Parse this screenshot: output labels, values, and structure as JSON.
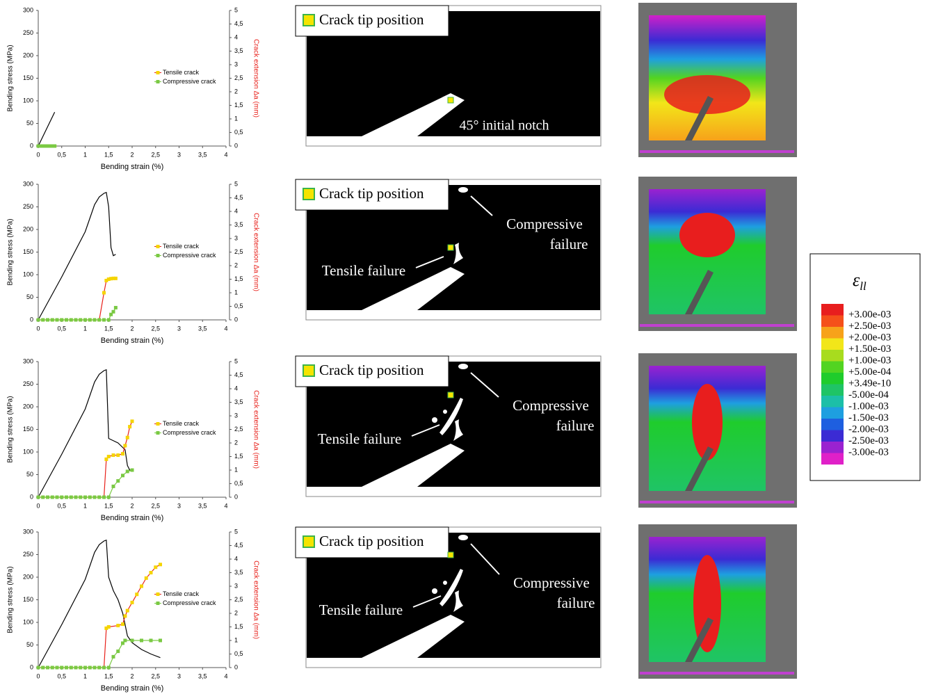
{
  "chart_data": [
    {
      "type": "line",
      "xlabel": "Bending strain (%)",
      "ylabel": "Bending stress (MPa)",
      "y2label": "Crack extension Δa (mm)",
      "legend": "center right",
      "xlim": [
        0,
        4
      ],
      "xticks": [
        0,
        {
          "value": 0.5,
          "label": "0,5"
        },
        1,
        {
          "value": 1.5,
          "label": "1,5"
        },
        2,
        {
          "value": 2.5,
          "label": "2,5"
        },
        3,
        {
          "value": 3.5,
          "label": "3,5"
        },
        4
      ],
      "ylim": [
        0,
        300
      ],
      "yticks": [
        0,
        50,
        100,
        150,
        200,
        250,
        300
      ],
      "y2lim": [
        0,
        5
      ],
      "y2ticks": [
        0,
        {
          "value": 0.5,
          "label": "0,5"
        },
        1,
        {
          "value": 1.5,
          "label": "1,5"
        },
        2,
        {
          "value": 2.5,
          "label": "2,5"
        },
        3,
        {
          "value": 3.5,
          "label": "3,5"
        },
        4,
        {
          "value": 4.5,
          "label": "4,5"
        },
        5
      ],
      "series": [
        {
          "color": "#000000",
          "axis": "y",
          "x": [
            0,
            0.35
          ],
          "values": [
            0,
            75
          ]
        },
        {
          "name": "Tensile crack",
          "color": "#f5d400",
          "line_color": "#e8201a",
          "axis": "y2",
          "x": [
            0,
            0.05,
            0.1,
            0.15,
            0.2,
            0.25,
            0.3,
            0.35
          ],
          "values": [
            0,
            0,
            0,
            0,
            0,
            0,
            0,
            0
          ]
        },
        {
          "name": "Compressive crack",
          "color": "#7ac943",
          "line_color": "#7ac943",
          "axis": "y2",
          "x": [
            0,
            0.05,
            0.1,
            0.15,
            0.2,
            0.25,
            0.3,
            0.35
          ],
          "values": [
            0,
            0,
            0,
            0,
            0,
            0,
            0,
            0
          ]
        }
      ]
    },
    {
      "type": "line",
      "xlabel": "Bending strain (%)",
      "ylabel": "Bending stress (MPa)",
      "y2label": "Crack extension Δa (mm)",
      "legend": "center right",
      "xlim": [
        0,
        4
      ],
      "xticks": [
        0,
        {
          "value": 0.5,
          "label": "0,5"
        },
        1,
        {
          "value": 1.5,
          "label": "1,5"
        },
        2,
        {
          "value": 2.5,
          "label": "2,5"
        },
        3,
        {
          "value": 3.5,
          "label": "3,5"
        },
        4
      ],
      "ylim": [
        0,
        300
      ],
      "yticks": [
        0,
        50,
        100,
        150,
        200,
        250,
        300
      ],
      "y2lim": [
        0,
        5
      ],
      "y2ticks": [
        0,
        {
          "value": 0.5,
          "label": "0,5"
        },
        1,
        {
          "value": 1.5,
          "label": "1,5"
        },
        2,
        {
          "value": 2.5,
          "label": "2,5"
        },
        3,
        {
          "value": 3.5,
          "label": "3,5"
        },
        4,
        {
          "value": 4.5,
          "label": "4,5"
        },
        5
      ],
      "series": [
        {
          "color": "#000000",
          "axis": "y",
          "x": [
            0,
            0.5,
            1,
            1.2,
            1.3,
            1.4,
            1.45,
            1.5,
            1.55,
            1.6,
            1.65
          ],
          "values": [
            0,
            95,
            195,
            255,
            272,
            280,
            282,
            250,
            160,
            142,
            145
          ]
        },
        {
          "name": "Tensile crack",
          "color": "#f5d400",
          "line_color": "#e8201a",
          "axis": "y2",
          "x": [
            0,
            0.1,
            0.2,
            0.3,
            0.4,
            0.5,
            0.6,
            0.7,
            0.8,
            0.9,
            1.0,
            1.1,
            1.2,
            1.3,
            1.4,
            1.45,
            1.5,
            1.55,
            1.6,
            1.65
          ],
          "values": [
            0,
            0,
            0,
            0,
            0,
            0,
            0,
            0,
            0,
            0,
            0,
            0,
            0,
            0,
            1.0,
            1.45,
            1.5,
            1.52,
            1.53,
            1.53
          ]
        },
        {
          "name": "Compressive crack",
          "color": "#7ac943",
          "line_color": "#7ac943",
          "axis": "y2",
          "x": [
            0,
            0.1,
            0.2,
            0.3,
            0.4,
            0.5,
            0.6,
            0.7,
            0.8,
            0.9,
            1.0,
            1.1,
            1.2,
            1.3,
            1.4,
            1.5,
            1.55,
            1.6,
            1.65
          ],
          "values": [
            0,
            0,
            0,
            0,
            0,
            0,
            0,
            0,
            0,
            0,
            0,
            0,
            0,
            0,
            0,
            0,
            0.2,
            0.3,
            0.45
          ]
        }
      ]
    },
    {
      "type": "line",
      "xlabel": "Bending strain (%)",
      "ylabel": "Bending stress (MPa)",
      "y2label": "Crack extension Δa (mm)",
      "legend": "center right",
      "xlim": [
        0,
        4
      ],
      "xticks": [
        0,
        {
          "value": 0.5,
          "label": "0,5"
        },
        1,
        {
          "value": 1.5,
          "label": "1,5"
        },
        2,
        {
          "value": 2.5,
          "label": "2,5"
        },
        3,
        {
          "value": 3.5,
          "label": "3,5"
        },
        4
      ],
      "ylim": [
        0,
        300
      ],
      "yticks": [
        0,
        50,
        100,
        150,
        200,
        250,
        300
      ],
      "y2lim": [
        0,
        5
      ],
      "y2ticks": [
        0,
        {
          "value": 0.5,
          "label": "0,5"
        },
        1,
        {
          "value": 1.5,
          "label": "1,5"
        },
        2,
        {
          "value": 2.5,
          "label": "2,5"
        },
        3,
        {
          "value": 3.5,
          "label": "3,5"
        },
        4,
        {
          "value": 4.5,
          "label": "4,5"
        },
        5
      ],
      "series": [
        {
          "color": "#000000",
          "axis": "y",
          "x": [
            0,
            0.5,
            1,
            1.2,
            1.3,
            1.4,
            1.45,
            1.5,
            1.6,
            1.7,
            1.8,
            1.85,
            1.9,
            1.95,
            2.0
          ],
          "values": [
            0,
            95,
            195,
            255,
            272,
            280,
            282,
            130,
            125,
            120,
            110,
            105,
            70,
            60,
            58
          ]
        },
        {
          "name": "Tensile crack",
          "color": "#f5d400",
          "line_color": "#e8201a",
          "axis": "y2",
          "x": [
            0,
            0.1,
            0.2,
            0.3,
            0.4,
            0.5,
            0.6,
            0.7,
            0.8,
            0.9,
            1.0,
            1.1,
            1.2,
            1.3,
            1.4,
            1.45,
            1.5,
            1.6,
            1.7,
            1.8,
            1.85,
            1.9,
            1.95,
            2.0
          ],
          "values": [
            0,
            0,
            0,
            0,
            0,
            0,
            0,
            0,
            0,
            0,
            0,
            0,
            0,
            0,
            0,
            1.4,
            1.5,
            1.55,
            1.55,
            1.6,
            1.9,
            2.2,
            2.6,
            2.8
          ]
        },
        {
          "name": "Compressive crack",
          "color": "#7ac943",
          "line_color": "#7ac943",
          "axis": "y2",
          "x": [
            0,
            0.1,
            0.2,
            0.3,
            0.4,
            0.5,
            0.6,
            0.7,
            0.8,
            0.9,
            1.0,
            1.1,
            1.2,
            1.3,
            1.4,
            1.5,
            1.6,
            1.7,
            1.8,
            1.9,
            2.0
          ],
          "values": [
            0,
            0,
            0,
            0,
            0,
            0,
            0,
            0,
            0,
            0,
            0,
            0,
            0,
            0,
            0,
            0,
            0.4,
            0.6,
            0.8,
            0.95,
            1.0
          ]
        }
      ]
    },
    {
      "type": "line",
      "xlabel": "Bending strain (%)",
      "ylabel": "Bending stress (MPa)",
      "y2label": "Crack extension Δa (mm)",
      "legend": "center right",
      "xlim": [
        0,
        4
      ],
      "xticks": [
        0,
        {
          "value": 0.5,
          "label": "0,5"
        },
        1,
        {
          "value": 1.5,
          "label": "1,5"
        },
        2,
        {
          "value": 2.5,
          "label": "2,5"
        },
        3,
        {
          "value": 3.5,
          "label": "3,5"
        },
        4
      ],
      "ylim": [
        0,
        300
      ],
      "yticks": [
        0,
        50,
        100,
        150,
        200,
        250,
        300
      ],
      "y2lim": [
        0,
        5
      ],
      "y2ticks": [
        0,
        {
          "value": 0.5,
          "label": "0,5"
        },
        1,
        {
          "value": 1.5,
          "label": "1,5"
        },
        2,
        {
          "value": 2.5,
          "label": "2,5"
        },
        3,
        {
          "value": 3.5,
          "label": "3,5"
        },
        4,
        {
          "value": 4.5,
          "label": "4,5"
        },
        5
      ],
      "series": [
        {
          "color": "#000000",
          "axis": "y",
          "x": [
            0,
            0.5,
            1,
            1.2,
            1.3,
            1.4,
            1.45,
            1.5,
            1.6,
            1.7,
            1.8,
            1.9,
            2.0,
            2.2,
            2.4,
            2.6
          ],
          "values": [
            0,
            95,
            195,
            255,
            272,
            280,
            282,
            200,
            170,
            150,
            120,
            70,
            55,
            40,
            30,
            22
          ]
        },
        {
          "name": "Tensile crack",
          "color": "#f5d400",
          "line_color": "#e8201a",
          "axis": "y2",
          "x": [
            0,
            0.1,
            0.2,
            0.3,
            0.4,
            0.5,
            0.6,
            0.7,
            0.8,
            0.9,
            1.0,
            1.1,
            1.2,
            1.3,
            1.4,
            1.45,
            1.5,
            1.7,
            1.8,
            1.85,
            1.9,
            2.0,
            2.1,
            2.2,
            2.3,
            2.4,
            2.5,
            2.6
          ],
          "values": [
            0,
            0,
            0,
            0,
            0,
            0,
            0,
            0,
            0,
            0,
            0,
            0,
            0,
            0,
            0,
            1.45,
            1.5,
            1.55,
            1.6,
            1.9,
            2.1,
            2.4,
            2.7,
            3.0,
            3.3,
            3.5,
            3.7,
            3.8
          ]
        },
        {
          "name": "Compressive crack",
          "color": "#7ac943",
          "line_color": "#7ac943",
          "axis": "y2",
          "x": [
            0,
            0.1,
            0.2,
            0.3,
            0.4,
            0.5,
            0.6,
            0.7,
            0.8,
            0.9,
            1.0,
            1.1,
            1.2,
            1.3,
            1.4,
            1.5,
            1.6,
            1.7,
            1.8,
            1.85,
            2.0,
            2.2,
            2.4,
            2.6
          ],
          "values": [
            0,
            0,
            0,
            0,
            0,
            0,
            0,
            0,
            0,
            0,
            0,
            0,
            0,
            0,
            0,
            0,
            0.4,
            0.6,
            0.9,
            1.0,
            1.0,
            1.0,
            1.0,
            1.0
          ]
        }
      ]
    }
  ],
  "panels": [
    {
      "crack_tip_label": "Crack tip position",
      "notch_label": "45° initial notch"
    },
    {
      "crack_tip_label": "Crack tip position",
      "compressive_label": [
        "Compressive",
        "failure"
      ],
      "tensile_label": "Tensile failure"
    },
    {
      "crack_tip_label": "Crack tip position",
      "compressive_label": [
        "Compressive",
        "failure"
      ],
      "tensile_label": "Tensile failure"
    },
    {
      "crack_tip_label": "Crack tip position",
      "compressive_label": [
        "Compressive",
        "failure"
      ],
      "tensile_label": "Tensile failure"
    }
  ],
  "colorbar": {
    "title": "ε",
    "title_sub": "ll",
    "labels": [
      "+3.00e-03",
      "+2.50e-03",
      "+2.00e-03",
      "+1.50e-03",
      "+1.00e-03",
      "+5.00e-04",
      "+3.49e-10",
      "-5.00e-04",
      "-1.00e-03",
      "-1.50e-03",
      "-2.00e-03",
      "-2.50e-03",
      "-3.00e-03"
    ],
    "colors": [
      "#e81e1e",
      "#f5501a",
      "#f7a21a",
      "#f2e619",
      "#a8dc1e",
      "#52d421",
      "#1fcc2c",
      "#1fc466",
      "#1cbfa8",
      "#1e9fe0",
      "#1e5fe0",
      "#3b2bd4",
      "#9a22d0",
      "#e020c8"
    ]
  }
}
